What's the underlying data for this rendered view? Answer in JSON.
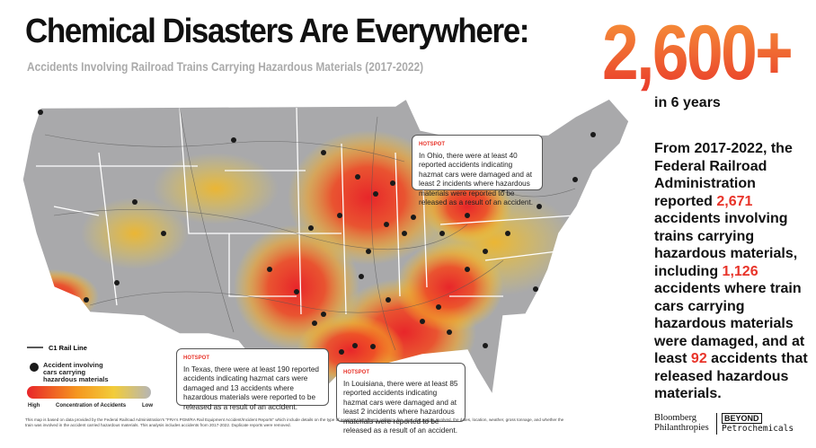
{
  "header": {
    "title": "Chemical Disasters Are Everywhere:",
    "subtitle": "Accidents Involving Railroad Trains Carrying Hazardous Materials (2017-2022)"
  },
  "stat": {
    "value": "2,600+",
    "caption": "in 6 years"
  },
  "summary": [
    "From 2017-2022, the Federal Railroad Administration reported ",
    "2,671",
    " accidents involving trains carrying hazardous materials, including ",
    "1,126",
    " accidents where train cars carrying hazardous materials were damaged, and at least ",
    "92",
    " accidents that released hazardous materials."
  ],
  "callouts": [
    {
      "label": "HOTSPOT",
      "text": "In Ohio, there were at least 40 reported accidents indicating hazmat cars were damaged and at least 2 incidents where hazardous materials were reported to be released as a result of an accident."
    },
    {
      "label": "HOTSPOT",
      "text": "In Texas, there were at least 190 reported accidents indicating hazmat cars were damaged and 13 accidents where hazardous materials were reported to be released as a result of an accident."
    },
    {
      "label": "HOTSPOT",
      "text": "In Louisiana, there were at least 85 reported accidents indicating hazmat cars were damaged and at least 2 incidents where hazardous materials were reported to be released as a result of an accident."
    }
  ],
  "legend": {
    "rail": "C1 Rail Line",
    "accident": "Accident involving cars carrying hazardous materials",
    "high": "High",
    "scale": "Concentration of Accidents",
    "low": "Low"
  },
  "footnote": "This map is based on data provided by the Federal Railroad Administration's \"FRA's PGM/RA Rail Equipment Accident/Incident Reports\" which include details on the type of accident (derailment, collision, fire, etc.), the parties involved, the dates, location, weather, gross tonnage, and whether the train was involved in the accident carried hazardous materials. This analysis includes accidents from 2017-2022. Duplicate reports were removed.",
  "logos": {
    "bloomberg": [
      "Bloomberg",
      "Philanthropies"
    ],
    "beyond": [
      "BEYOND",
      "Petrochemicals"
    ]
  }
}
